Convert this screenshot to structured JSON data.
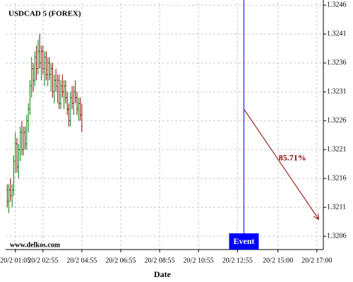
{
  "chart_data": {
    "type": "ohlc",
    "title": "USDCAD 5 (FOREX)",
    "watermark": "www.delkos.com",
    "x_label": "Date",
    "x": [
      1,
      2,
      3,
      4,
      5,
      6,
      7,
      8,
      9,
      10,
      11,
      12,
      13,
      14,
      15,
      16,
      17,
      18,
      19,
      20,
      21,
      22,
      23,
      24,
      25,
      26,
      27,
      28,
      29,
      30,
      31,
      32,
      33,
      34,
      35,
      36,
      37,
      38,
      39,
      40,
      41,
      42,
      43,
      44,
      45,
      46,
      47
    ],
    "open": [
      1.3214,
      1.3212,
      1.3214,
      1.3213,
      1.3214,
      1.3219,
      1.3222,
      1.3218,
      1.3221,
      1.3224,
      1.3221,
      1.3224,
      1.3222,
      1.3226,
      1.3228,
      1.3232,
      1.3235,
      1.3233,
      1.3237,
      1.3235,
      1.3238,
      1.3236,
      1.3238,
      1.3235,
      1.3237,
      1.3234,
      1.3236,
      1.3234,
      1.3235,
      1.3231,
      1.3233,
      1.3232,
      1.3233,
      1.3229,
      1.3232,
      1.3231,
      1.3232,
      1.323,
      1.3228,
      1.3226,
      1.323,
      1.3229,
      1.3231,
      1.323,
      1.3228,
      1.3229,
      1.3227
    ],
    "high": [
      1.3215,
      1.3215,
      1.3216,
      1.3215,
      1.322,
      1.3224,
      1.3223,
      1.3222,
      1.3225,
      1.3226,
      1.3225,
      1.3225,
      1.3227,
      1.3229,
      1.3233,
      1.3237,
      1.3236,
      1.3238,
      1.3239,
      1.324,
      1.3241,
      1.3239,
      1.3239,
      1.3238,
      1.3238,
      1.3237,
      1.3237,
      1.3236,
      1.3236,
      1.3234,
      1.3235,
      1.3234,
      1.3234,
      1.3233,
      1.3234,
      1.3233,
      1.3233,
      1.3231,
      1.3229,
      1.3231,
      1.3232,
      1.3232,
      1.3233,
      1.3231,
      1.323,
      1.323,
      1.3229
    ],
    "low": [
      1.3211,
      1.321,
      1.3212,
      1.3211,
      1.3213,
      1.3217,
      1.3217,
      1.3216,
      1.3219,
      1.322,
      1.322,
      1.3221,
      1.3221,
      1.3224,
      1.3227,
      1.323,
      1.3231,
      1.3232,
      1.3233,
      1.3234,
      1.3235,
      1.3233,
      1.3234,
      1.3232,
      1.3233,
      1.3232,
      1.3233,
      1.3231,
      1.323,
      1.3229,
      1.3231,
      1.3229,
      1.3228,
      1.3228,
      1.323,
      1.3228,
      1.3229,
      1.3227,
      1.3225,
      1.3225,
      1.3228,
      1.3227,
      1.3229,
      1.3227,
      1.3226,
      1.3226,
      1.3224
    ],
    "close": [
      1.3212,
      1.3214,
      1.3213,
      1.3214,
      1.3219,
      1.3222,
      1.3218,
      1.3221,
      1.3224,
      1.3221,
      1.3224,
      1.3222,
      1.3226,
      1.3228,
      1.3232,
      1.3235,
      1.3233,
      1.3237,
      1.3235,
      1.3238,
      1.3236,
      1.3238,
      1.3235,
      1.3237,
      1.3234,
      1.3236,
      1.3234,
      1.3235,
      1.3231,
      1.3233,
      1.3232,
      1.3233,
      1.3229,
      1.3232,
      1.3231,
      1.3232,
      1.323,
      1.3228,
      1.3226,
      1.323,
      1.3229,
      1.3231,
      1.323,
      1.3228,
      1.3229,
      1.3227,
      1.3225
    ],
    "up_color": "#008000",
    "down_color": "#8b0000",
    "xlim": [
      0,
      196
    ],
    "xticks": [
      {
        "value": 6,
        "label": "20/2 01:05"
      },
      {
        "value": 23,
        "label": "20/2 02:55"
      },
      {
        "value": 47,
        "label": "20/2 04:55"
      },
      {
        "value": 71,
        "label": "20/2 06:55"
      },
      {
        "value": 95,
        "label": "20/2 08:55"
      },
      {
        "value": 119,
        "label": "20/2 10:55"
      },
      {
        "value": 143,
        "label": "20/2 12:55"
      },
      {
        "value": 168,
        "label": "20/2 15:00"
      },
      {
        "value": 192,
        "label": "20/2 17:00"
      }
    ],
    "ylim": [
      1.32037,
      1.32464
    ],
    "yticks": [
      1.3206,
      1.3211,
      1.3216,
      1.3221,
      1.3226,
      1.3231,
      1.3236,
      1.3241,
      1.3246
    ],
    "grid": true,
    "event": {
      "x": 147,
      "label": "Event",
      "color": "#0000ff"
    },
    "forecast": {
      "x": [
        147,
        193
      ],
      "y": [
        1.3228,
        1.3209
      ],
      "label": "85.71%",
      "color": "#8b0000"
    }
  }
}
